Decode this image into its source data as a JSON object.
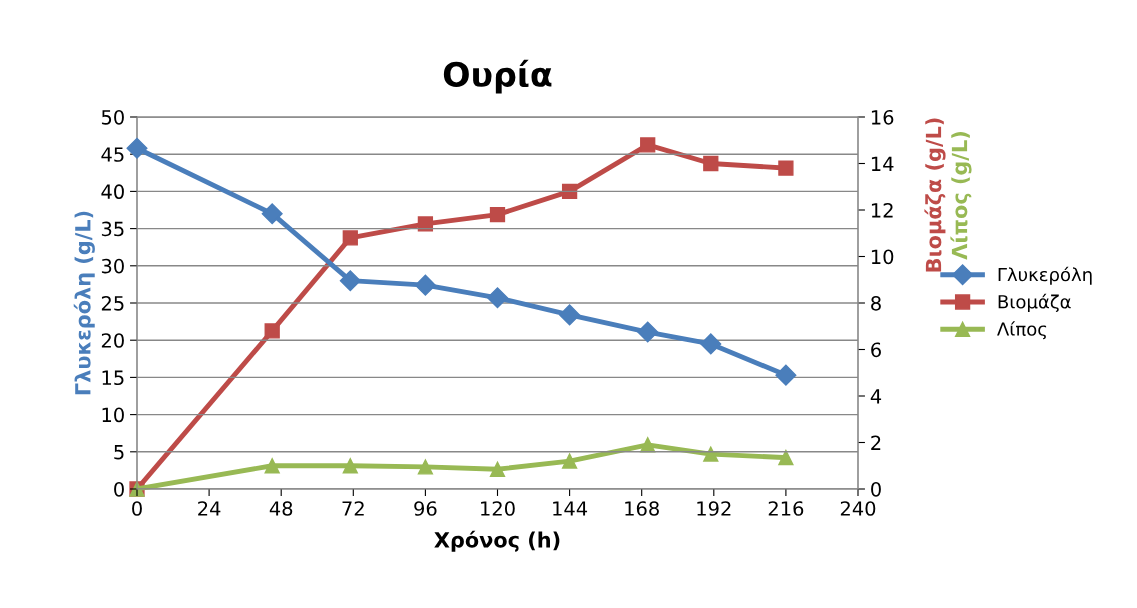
{
  "chart_data": {
    "type": "line",
    "title": "Ουρία",
    "xlabel": "Χρόνος (h)",
    "ylabel": "Γλυκερόλη (g/L)",
    "y2label": "Βιομάζα (g/L)\nΛίπος (g/L)",
    "xlim": [
      0,
      240
    ],
    "xticks": [
      0,
      24,
      48,
      72,
      96,
      120,
      144,
      168,
      192,
      216,
      240
    ],
    "ylim": [
      0,
      50
    ],
    "yticks": [
      0,
      5,
      10,
      15,
      20,
      25,
      30,
      35,
      40,
      45,
      50
    ],
    "y2lim": [
      0,
      16
    ],
    "y2ticks": [
      0,
      2,
      4,
      6,
      8,
      10,
      12,
      14,
      16
    ],
    "x": [
      0,
      45,
      71,
      96,
      120,
      144,
      170,
      191,
      216
    ],
    "grid": "y",
    "legend": "right",
    "series": [
      {
        "name": "Γλυκερόλη",
        "color": "#4a7ebb",
        "marker": "diamond",
        "values": [
          45.8,
          37.0,
          28.0,
          27.4,
          25.7,
          23.4,
          21.1,
          19.5,
          15.3
        ]
      },
      {
        "name": "Βιομάζα",
        "color": "#be4b48",
        "marker": "square",
        "axis": "y2",
        "values": [
          0,
          6.8,
          10.8,
          11.4,
          11.8,
          12.8,
          14.8,
          14.0,
          13.8
        ]
      },
      {
        "name": "Λίπος",
        "color": "#98b954",
        "marker": "triangle",
        "axis": "y2",
        "values": [
          0,
          1.0,
          1.0,
          0.95,
          0.85,
          1.2,
          1.9,
          1.5,
          1.35
        ]
      }
    ]
  }
}
